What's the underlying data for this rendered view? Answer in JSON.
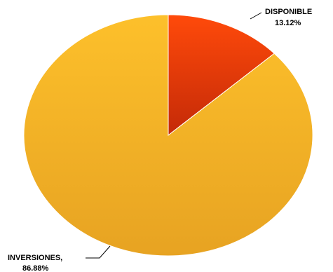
{
  "chart_data": {
    "type": "pie",
    "title": "",
    "slices": [
      {
        "label": "DISPONIBLE",
        "value": 13.12,
        "value_text": "13.12%",
        "color_light": "#ff4a0a",
        "color_dark": "#c42a08"
      },
      {
        "label": "INVERSIONES,",
        "value": 86.88,
        "value_text": "86.88%",
        "color_light": "#fdc02b",
        "color_dark": "#e7a322"
      }
    ],
    "legend": "none",
    "data_labels": "outside with leader lines"
  }
}
